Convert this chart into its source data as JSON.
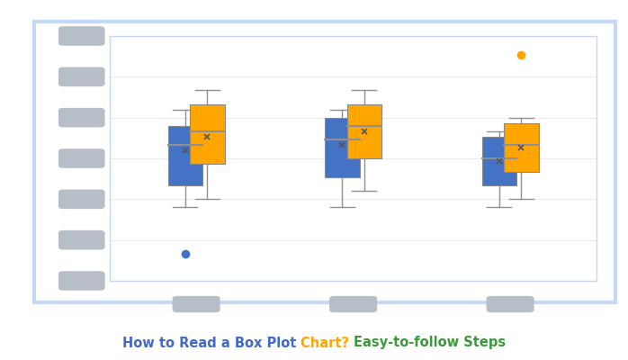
{
  "title_parts": [
    {
      "text": "How to Read a Box Plot ",
      "color": "#4169C8"
    },
    {
      "text": "Chart? ",
      "color": "#FFA500"
    },
    {
      "text": "Easy-to-follow Steps",
      "color": "#3a9a3a"
    }
  ],
  "background_outer": "#ffffff",
  "border_color": "#c5d8f5",
  "plot_bg": "#ffffff",
  "blue_color": "#4472C4",
  "orange_color": "#FFA500",
  "whisker_color": "#909090",
  "pill_color": "#b8bec8",
  "grid_color": "#e8e8e8",
  "groups": [
    {
      "x": 1,
      "blue": {
        "q1": 4.0,
        "q3": 6.2,
        "median": 5.5,
        "mean": 5.3,
        "wlow": 3.2,
        "whigh": 6.8,
        "outliers": [
          1.5
        ]
      },
      "orange": {
        "q1": 4.8,
        "q3": 7.0,
        "median": 6.0,
        "mean": 5.8,
        "wlow": 3.5,
        "whigh": 7.5,
        "outliers": []
      }
    },
    {
      "x": 2,
      "blue": {
        "q1": 4.3,
        "q3": 6.5,
        "median": 5.7,
        "mean": 5.5,
        "wlow": 3.2,
        "whigh": 6.8,
        "outliers": []
      },
      "orange": {
        "q1": 5.0,
        "q3": 7.0,
        "median": 6.2,
        "mean": 6.0,
        "wlow": 3.8,
        "whigh": 7.5,
        "outliers": []
      }
    },
    {
      "x": 3,
      "blue": {
        "q1": 4.0,
        "q3": 5.8,
        "median": 5.0,
        "mean": 4.9,
        "wlow": 3.2,
        "whigh": 6.0,
        "outliers": []
      },
      "orange": {
        "q1": 4.5,
        "q3": 6.3,
        "median": 5.5,
        "mean": 5.4,
        "wlow": 3.5,
        "whigh": 6.5,
        "outliers": [
          8.8
        ]
      }
    }
  ],
  "ylim": [
    0.5,
    9.5
  ],
  "n_ytick_pills": 7,
  "xtick_positions": [
    1,
    2,
    3
  ],
  "figsize": [
    6.98,
    4.0
  ],
  "dpi": 100
}
